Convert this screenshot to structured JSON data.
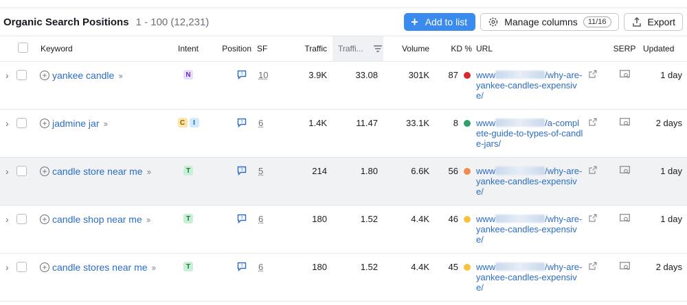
{
  "toolbar": {
    "title": "Organic Search Positions",
    "range": "1 - 100 (12,231)",
    "add_label": "Add to list",
    "manage_label": "Manage columns",
    "manage_count": "11/16",
    "export_label": "Export"
  },
  "columns": {
    "keyword": "Keyword",
    "intent": "Intent",
    "position": "Position",
    "sf": "SF",
    "traffic": "Traffic",
    "traffic_pct": "Traffi...",
    "volume": "Volume",
    "kd": "KD %",
    "url": "URL",
    "serp": "SERP",
    "updated": "Updated"
  },
  "colors": {
    "accent": "#3a8bed",
    "kd_red": "#d72a2e",
    "kd_green": "#2e9e6b",
    "kd_orange": "#f08c4b",
    "kd_yellow": "#f5c33c"
  },
  "rows": [
    {
      "keyword": "yankee candle",
      "intents": [
        "N"
      ],
      "sf": "10",
      "traffic": "3.9K",
      "traffic_pct": "33.08",
      "volume": "301K",
      "kd": "87",
      "kd_color": "#d72a2e",
      "url_prefix": "www",
      "url_rest": "/why-are-yankee-candles-expensive/",
      "updated": "1 day"
    },
    {
      "keyword": "jadmine jar",
      "intents": [
        "C",
        "I"
      ],
      "sf": "6",
      "traffic": "1.4K",
      "traffic_pct": "11.47",
      "volume": "33.1K",
      "kd": "8",
      "kd_color": "#2e9e6b",
      "url_prefix": "www",
      "url_rest": "/a-complete-guide-to-types-of-candle-jars/",
      "updated": "2 days"
    },
    {
      "keyword": "candle store near me",
      "intents": [
        "T"
      ],
      "sf": "5",
      "traffic": "214",
      "traffic_pct": "1.80",
      "volume": "6.6K",
      "kd": "56",
      "kd_color": "#f08c4b",
      "url_prefix": "www",
      "url_rest": "/why-are-yankee-candles-expensive/",
      "updated": "1 day"
    },
    {
      "keyword": "candle shop near me",
      "intents": [
        "T"
      ],
      "sf": "6",
      "traffic": "180",
      "traffic_pct": "1.52",
      "volume": "4.4K",
      "kd": "46",
      "kd_color": "#f5c33c",
      "url_prefix": "www",
      "url_rest": "/why-are-yankee-candles-expensive/",
      "updated": "1 day"
    },
    {
      "keyword": "candle stores near me",
      "intents": [
        "T"
      ],
      "sf": "6",
      "traffic": "180",
      "traffic_pct": "1.52",
      "volume": "4.4K",
      "kd": "45",
      "kd_color": "#f5c33c",
      "url_prefix": "www",
      "url_rest": "/why-are-yankee-candles-expensive/",
      "updated": "2 days"
    }
  ]
}
